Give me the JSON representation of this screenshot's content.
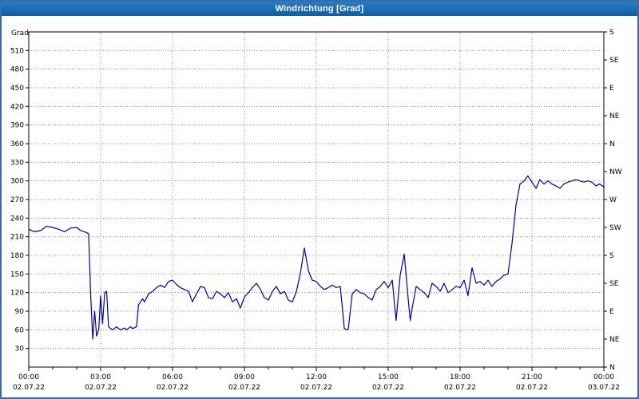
{
  "window": {
    "title": "Windrichtung [Grad]"
  },
  "chart_data": {
    "type": "line",
    "title": "Windrichtung [Grad]",
    "xlabel": "",
    "ylabel": "Grad",
    "ylim": [
      0,
      540
    ],
    "xlim_hours": [
      0,
      24
    ],
    "grid": true,
    "legend": "none",
    "colors": {
      "line": "#000099",
      "titlebar": "#0c5ea6",
      "border": "#2e6fae",
      "grid": "#8f8f8f"
    },
    "y_ticks_left": [
      30,
      60,
      90,
      120,
      150,
      180,
      210,
      240,
      270,
      300,
      330,
      360,
      390,
      420,
      450,
      480,
      510
    ],
    "y_ticks_right": [
      {
        "deg": 0,
        "label": "N"
      },
      {
        "deg": 45,
        "label": "NE"
      },
      {
        "deg": 90,
        "label": "E"
      },
      {
        "deg": 135,
        "label": "SE"
      },
      {
        "deg": 180,
        "label": "S"
      },
      {
        "deg": 225,
        "label": "SW"
      },
      {
        "deg": 270,
        "label": "W"
      },
      {
        "deg": 315,
        "label": "NW"
      },
      {
        "deg": 360,
        "label": "N"
      },
      {
        "deg": 405,
        "label": "NE"
      },
      {
        "deg": 450,
        "label": "E"
      },
      {
        "deg": 495,
        "label": "SE"
      },
      {
        "deg": 540,
        "label": "S"
      }
    ],
    "x_ticks": [
      {
        "hour": 0,
        "time": "00:00",
        "date": "02.07.22"
      },
      {
        "hour": 3,
        "time": "03:00",
        "date": "02.07.22"
      },
      {
        "hour": 6,
        "time": "06:00",
        "date": "02.07.22"
      },
      {
        "hour": 9,
        "time": "09:00",
        "date": "02.07.22"
      },
      {
        "hour": 12,
        "time": "12:00",
        "date": "02.07.22"
      },
      {
        "hour": 15,
        "time": "15:00",
        "date": "02.07.22"
      },
      {
        "hour": 18,
        "time": "18:00",
        "date": "02.07.22"
      },
      {
        "hour": 21,
        "time": "21:00",
        "date": "02.07.22"
      },
      {
        "hour": 24,
        "time": "00:00",
        "date": "03.07.22"
      }
    ],
    "series": [
      {
        "name": "Windrichtung",
        "color": "#000099",
        "points": [
          [
            0,
            222
          ],
          [
            0.25,
            218
          ],
          [
            0.5,
            220
          ],
          [
            0.75,
            227
          ],
          [
            1.0,
            225
          ],
          [
            1.25,
            222
          ],
          [
            1.5,
            218
          ],
          [
            1.75,
            224
          ],
          [
            2.0,
            225
          ],
          [
            2.17,
            220
          ],
          [
            2.33,
            218
          ],
          [
            2.5,
            215
          ],
          [
            2.58,
            120
          ],
          [
            2.67,
            45
          ],
          [
            2.75,
            90
          ],
          [
            2.83,
            50
          ],
          [
            2.92,
            60
          ],
          [
            3.0,
            115
          ],
          [
            3.08,
            70
          ],
          [
            3.17,
            120
          ],
          [
            3.25,
            122
          ],
          [
            3.33,
            65
          ],
          [
            3.42,
            62
          ],
          [
            3.5,
            60
          ],
          [
            3.67,
            65
          ],
          [
            3.75,
            62
          ],
          [
            3.83,
            60
          ],
          [
            4.0,
            63
          ],
          [
            4.08,
            60
          ],
          [
            4.25,
            65
          ],
          [
            4.33,
            62
          ],
          [
            4.5,
            65
          ],
          [
            4.58,
            100
          ],
          [
            4.75,
            110
          ],
          [
            4.83,
            105
          ],
          [
            5.0,
            118
          ],
          [
            5.17,
            122
          ],
          [
            5.33,
            128
          ],
          [
            5.5,
            132
          ],
          [
            5.67,
            128
          ],
          [
            5.83,
            138
          ],
          [
            6.0,
            140
          ],
          [
            6.17,
            133
          ],
          [
            6.33,
            128
          ],
          [
            6.5,
            125
          ],
          [
            6.67,
            122
          ],
          [
            6.83,
            105
          ],
          [
            7.0,
            118
          ],
          [
            7.17,
            130
          ],
          [
            7.33,
            128
          ],
          [
            7.5,
            112
          ],
          [
            7.67,
            110
          ],
          [
            7.83,
            122
          ],
          [
            8.0,
            118
          ],
          [
            8.17,
            112
          ],
          [
            8.33,
            120
          ],
          [
            8.5,
            105
          ],
          [
            8.67,
            110
          ],
          [
            8.83,
            95
          ],
          [
            9.0,
            113
          ],
          [
            9.17,
            120
          ],
          [
            9.33,
            128
          ],
          [
            9.5,
            135
          ],
          [
            9.67,
            125
          ],
          [
            9.83,
            112
          ],
          [
            10.0,
            108
          ],
          [
            10.17,
            122
          ],
          [
            10.33,
            130
          ],
          [
            10.5,
            118
          ],
          [
            10.67,
            122
          ],
          [
            10.83,
            108
          ],
          [
            11.0,
            105
          ],
          [
            11.17,
            122
          ],
          [
            11.33,
            150
          ],
          [
            11.5,
            192
          ],
          [
            11.67,
            155
          ],
          [
            11.83,
            140
          ],
          [
            12.0,
            138
          ],
          [
            12.17,
            130
          ],
          [
            12.33,
            125
          ],
          [
            12.5,
            128
          ],
          [
            12.67,
            132
          ],
          [
            12.83,
            128
          ],
          [
            13.0,
            130
          ],
          [
            13.17,
            62
          ],
          [
            13.33,
            60
          ],
          [
            13.5,
            118
          ],
          [
            13.67,
            125
          ],
          [
            13.83,
            120
          ],
          [
            14.0,
            118
          ],
          [
            14.17,
            112
          ],
          [
            14.33,
            108
          ],
          [
            14.5,
            125
          ],
          [
            14.67,
            130
          ],
          [
            14.83,
            138
          ],
          [
            15.0,
            128
          ],
          [
            15.17,
            140
          ],
          [
            15.33,
            75
          ],
          [
            15.5,
            148
          ],
          [
            15.67,
            182
          ],
          [
            15.83,
            112
          ],
          [
            15.92,
            75
          ],
          [
            16.0,
            95
          ],
          [
            16.17,
            130
          ],
          [
            16.33,
            125
          ],
          [
            16.5,
            120
          ],
          [
            16.67,
            112
          ],
          [
            16.83,
            135
          ],
          [
            17.0,
            130
          ],
          [
            17.17,
            122
          ],
          [
            17.33,
            135
          ],
          [
            17.5,
            120
          ],
          [
            17.67,
            125
          ],
          [
            17.83,
            130
          ],
          [
            18.0,
            128
          ],
          [
            18.17,
            140
          ],
          [
            18.33,
            115
          ],
          [
            18.5,
            160
          ],
          [
            18.67,
            135
          ],
          [
            18.83,
            138
          ],
          [
            19.0,
            132
          ],
          [
            19.17,
            140
          ],
          [
            19.33,
            130
          ],
          [
            19.5,
            138
          ],
          [
            19.67,
            142
          ],
          [
            19.83,
            148
          ],
          [
            20.0,
            150
          ],
          [
            20.17,
            200
          ],
          [
            20.33,
            260
          ],
          [
            20.5,
            295
          ],
          [
            20.67,
            300
          ],
          [
            20.83,
            308
          ],
          [
            21.0,
            298
          ],
          [
            21.17,
            288
          ],
          [
            21.33,
            302
          ],
          [
            21.5,
            295
          ],
          [
            21.67,
            300
          ],
          [
            21.83,
            295
          ],
          [
            22.0,
            292
          ],
          [
            22.17,
            288
          ],
          [
            22.33,
            295
          ],
          [
            22.5,
            298
          ],
          [
            22.67,
            300
          ],
          [
            22.83,
            302
          ],
          [
            23.0,
            300
          ],
          [
            23.17,
            298
          ],
          [
            23.33,
            300
          ],
          [
            23.5,
            298
          ],
          [
            23.67,
            292
          ],
          [
            23.83,
            295
          ],
          [
            24.0,
            290
          ]
        ]
      }
    ]
  }
}
